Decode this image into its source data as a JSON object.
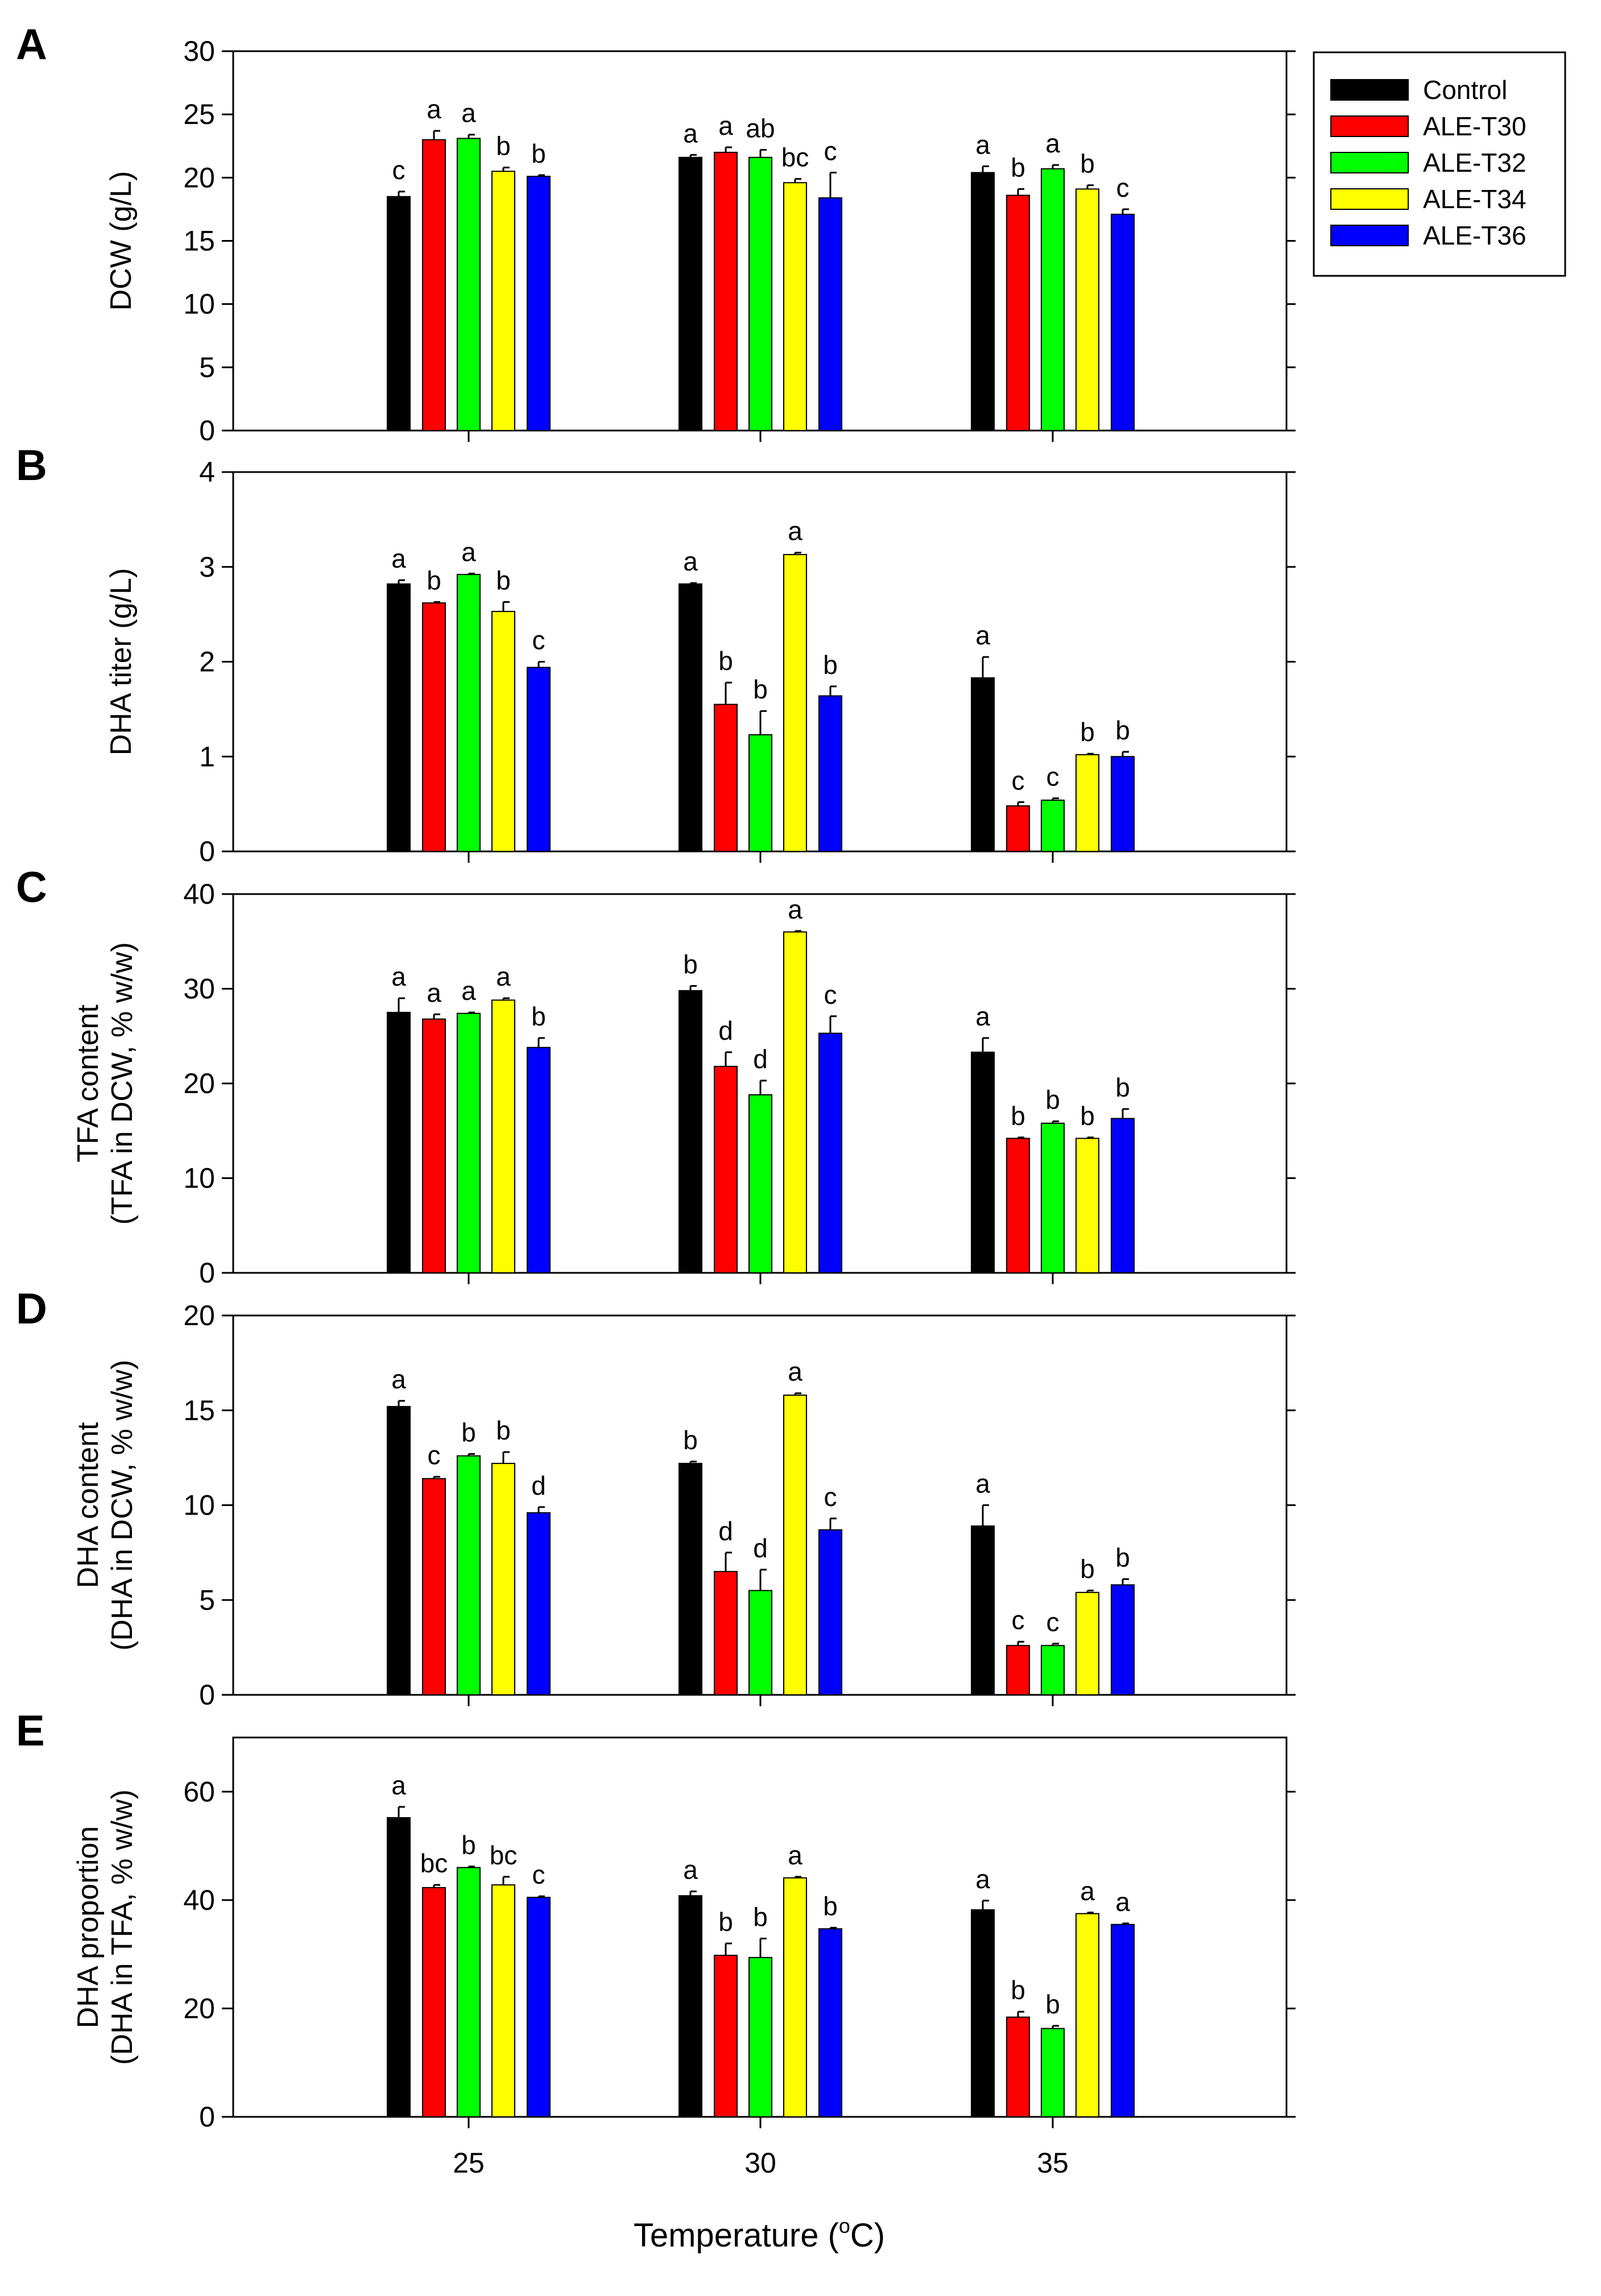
{
  "colors": {
    "Control": "#000000",
    "ALE-T30": "#ff0000",
    "ALE-T32": "#00ff00",
    "ALE-T34": "#ffff00",
    "ALE-T36": "#0000ff"
  },
  "legend": [
    "Control",
    "ALE-T30",
    "ALE-T32",
    "ALE-T34",
    "ALE-T36"
  ],
  "x_axis": {
    "title_prefix": "Temperature (",
    "title_sup": "o",
    "title_suffix": "C)",
    "tick_labels": [
      "25",
      "30",
      "35"
    ]
  },
  "chart_data": [
    {
      "type": "bar",
      "panel": "A",
      "ylabel_lines": [
        "DCW (g/L)"
      ],
      "ylim": [
        0,
        30
      ],
      "yticks": [
        0,
        5,
        10,
        15,
        20,
        25,
        30
      ],
      "categories": [
        "25",
        "30",
        "35"
      ],
      "series": [
        {
          "name": "Control",
          "values": [
            18.5,
            21.6,
            20.4
          ],
          "errors": [
            0.4,
            0.2,
            0.5
          ],
          "labels": [
            "c",
            "a",
            "a"
          ]
        },
        {
          "name": "ALE-T30",
          "values": [
            23.0,
            22.0,
            18.6
          ],
          "errors": [
            0.7,
            0.4,
            0.5
          ],
          "labels": [
            "a",
            "a",
            "b"
          ]
        },
        {
          "name": "ALE-T32",
          "values": [
            23.1,
            21.6,
            20.7
          ],
          "errors": [
            0.3,
            0.6,
            0.3
          ],
          "labels": [
            "a",
            "ab",
            "a"
          ]
        },
        {
          "name": "ALE-T34",
          "values": [
            20.5,
            19.6,
            19.1
          ],
          "errors": [
            0.3,
            0.3,
            0.3
          ],
          "labels": [
            "b",
            "bc",
            "b"
          ]
        },
        {
          "name": "ALE-T36",
          "values": [
            20.1,
            18.4,
            17.1
          ],
          "errors": [
            0.1,
            2.0,
            0.4
          ],
          "labels": [
            "b",
            "c",
            "c"
          ]
        }
      ]
    },
    {
      "type": "bar",
      "panel": "B",
      "ylabel_lines": [
        "DHA titer (g/L)"
      ],
      "ylim": [
        0,
        4
      ],
      "yticks": [
        0,
        1,
        2,
        3,
        4
      ],
      "categories": [
        "25",
        "30",
        "35"
      ],
      "series": [
        {
          "name": "Control",
          "values": [
            2.82,
            2.82,
            1.83
          ],
          "errors": [
            0.04,
            0.01,
            0.22
          ],
          "labels": [
            "a",
            "a",
            "a"
          ]
        },
        {
          "name": "ALE-T30",
          "values": [
            2.62,
            1.55,
            0.48
          ],
          "errors": [
            0.01,
            0.23,
            0.04
          ],
          "labels": [
            "b",
            "b",
            "c"
          ]
        },
        {
          "name": "ALE-T32",
          "values": [
            2.92,
            1.23,
            0.54
          ],
          "errors": [
            0.01,
            0.25,
            0.02
          ],
          "labels": [
            "a",
            "b",
            "c"
          ]
        },
        {
          "name": "ALE-T34",
          "values": [
            2.53,
            3.13,
            1.02
          ],
          "errors": [
            0.1,
            0.02,
            0.01
          ],
          "labels": [
            "b",
            "a",
            "b"
          ]
        },
        {
          "name": "ALE-T36",
          "values": [
            1.94,
            1.64,
            1.0
          ],
          "errors": [
            0.06,
            0.1,
            0.05
          ],
          "labels": [
            "c",
            "b",
            "b"
          ]
        }
      ]
    },
    {
      "type": "bar",
      "panel": "C",
      "ylabel_lines": [
        "TFA content",
        "(TFA in DCW, % w/w)"
      ],
      "ylim": [
        0,
        40
      ],
      "yticks": [
        0,
        10,
        20,
        30,
        40
      ],
      "categories": [
        "25",
        "30",
        "35"
      ],
      "series": [
        {
          "name": "Control",
          "values": [
            27.5,
            29.8,
            23.3
          ],
          "errors": [
            1.5,
            0.5,
            1.5
          ],
          "labels": [
            "a",
            "b",
            "a"
          ]
        },
        {
          "name": "ALE-T30",
          "values": [
            26.8,
            21.8,
            14.2
          ],
          "errors": [
            0.5,
            1.5,
            0.1
          ],
          "labels": [
            "a",
            "d",
            "b"
          ]
        },
        {
          "name": "ALE-T32",
          "values": [
            27.4,
            18.8,
            15.8
          ],
          "errors": [
            0.1,
            1.5,
            0.2
          ],
          "labels": [
            "a",
            "d",
            "b"
          ]
        },
        {
          "name": "ALE-T34",
          "values": [
            28.8,
            36.0,
            14.2
          ],
          "errors": [
            0.2,
            0.1,
            0.1
          ],
          "labels": [
            "a",
            "a",
            "b"
          ]
        },
        {
          "name": "ALE-T36",
          "values": [
            23.8,
            25.3,
            16.3
          ],
          "errors": [
            1.0,
            1.8,
            1.0
          ],
          "labels": [
            "b",
            "c",
            "b"
          ]
        }
      ]
    },
    {
      "type": "bar",
      "panel": "D",
      "ylabel_lines": [
        "DHA content",
        "(DHA in DCW, % w/w)"
      ],
      "ylim": [
        0,
        20
      ],
      "yticks": [
        0,
        5,
        10,
        15,
        20
      ],
      "categories": [
        "25",
        "30",
        "35"
      ],
      "series": [
        {
          "name": "Control",
          "values": [
            15.2,
            12.2,
            8.9
          ],
          "errors": [
            0.3,
            0.1,
            1.1
          ],
          "labels": [
            "a",
            "b",
            "a"
          ]
        },
        {
          "name": "ALE-T30",
          "values": [
            11.4,
            6.5,
            2.6
          ],
          "errors": [
            0.1,
            1.0,
            0.2
          ],
          "labels": [
            "c",
            "d",
            "c"
          ]
        },
        {
          "name": "ALE-T32",
          "values": [
            12.6,
            5.5,
            2.6
          ],
          "errors": [
            0.1,
            1.1,
            0.1
          ],
          "labels": [
            "b",
            "d",
            "c"
          ]
        },
        {
          "name": "ALE-T34",
          "values": [
            12.2,
            15.8,
            5.4
          ],
          "errors": [
            0.6,
            0.1,
            0.1
          ],
          "labels": [
            "b",
            "a",
            "b"
          ]
        },
        {
          "name": "ALE-T36",
          "values": [
            9.6,
            8.7,
            5.8
          ],
          "errors": [
            0.3,
            0.6,
            0.3
          ],
          "labels": [
            "d",
            "c",
            "b"
          ]
        }
      ]
    },
    {
      "type": "bar",
      "panel": "E",
      "ylabel_lines": [
        "DHA proportion",
        "(DHA in TFA, % w/w)"
      ],
      "ylim": [
        0,
        70
      ],
      "yticks": [
        0,
        20,
        40,
        60
      ],
      "categories": [
        "25",
        "30",
        "35"
      ],
      "series": [
        {
          "name": "Control",
          "values": [
            55.2,
            40.8,
            38.2
          ],
          "errors": [
            2.0,
            0.8,
            1.7
          ],
          "labels": [
            "a",
            "a",
            "a"
          ]
        },
        {
          "name": "ALE-T30",
          "values": [
            42.3,
            29.8,
            18.4
          ],
          "errors": [
            0.5,
            2.2,
            1.0
          ],
          "labels": [
            "bc",
            "b",
            "b"
          ]
        },
        {
          "name": "ALE-T32",
          "values": [
            46.0,
            29.4,
            16.3
          ],
          "errors": [
            0.2,
            3.5,
            0.5
          ],
          "labels": [
            "b",
            "b",
            "b"
          ]
        },
        {
          "name": "ALE-T34",
          "values": [
            42.8,
            44.1,
            37.5
          ],
          "errors": [
            1.5,
            0.2,
            0.2
          ],
          "labels": [
            "bc",
            "a",
            "a"
          ]
        },
        {
          "name": "ALE-T36",
          "values": [
            40.5,
            34.7,
            35.5
          ],
          "errors": [
            0.2,
            0.2,
            0.2
          ],
          "labels": [
            "c",
            "b",
            "a"
          ]
        }
      ]
    }
  ]
}
